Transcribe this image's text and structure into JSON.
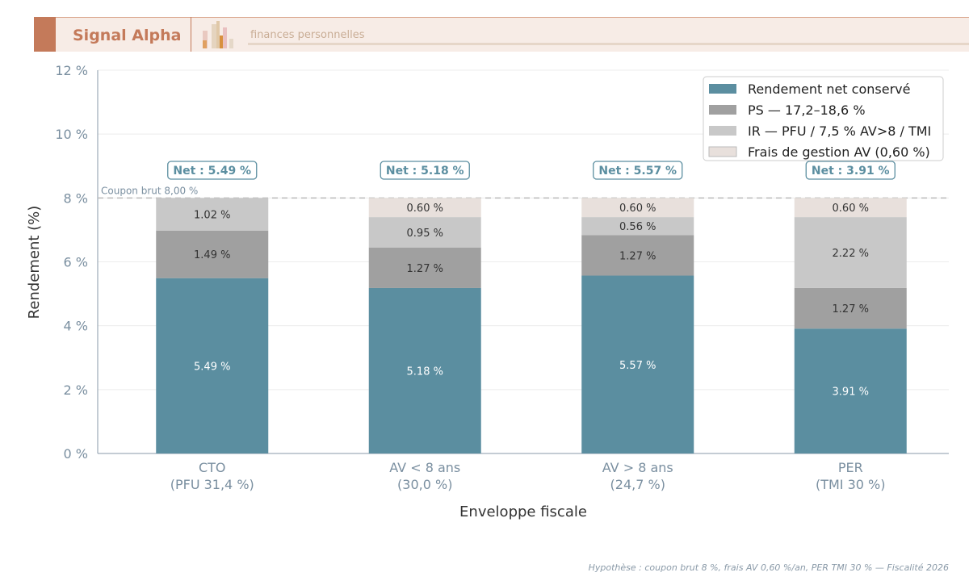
{
  "header": {
    "brand": "Signal Alpha",
    "tagline": "finances personnelles",
    "accent": "#c47a5a",
    "background": "#f7ece6"
  },
  "chart_data": {
    "type": "bar",
    "stacked": true,
    "categories": [
      "CTO\n(PFU 31,4 %)",
      "AV < 8 ans\n(30,0 %)",
      "AV > 8 ans\n(24,7 %)",
      "PER\n(TMI 30 %)"
    ],
    "series": [
      {
        "name": "Rendement net conservé",
        "color": "#5b8ea0",
        "values": [
          5.49,
          5.18,
          5.57,
          3.91
        ],
        "labels": [
          "5.49 %",
          "5.18 %",
          "5.57 %",
          "3.91 %"
        ]
      },
      {
        "name": "PS — 17,2–18,6 %",
        "color": "#a0a0a0",
        "values": [
          1.49,
          1.27,
          1.27,
          1.27
        ],
        "labels": [
          "1.49 %",
          "1.27 %",
          "1.27 %",
          "1.27 %"
        ]
      },
      {
        "name": "IR — PFU / 7,5 % AV>8 / TMI",
        "color": "#c8c8c8",
        "values": [
          1.02,
          0.95,
          0.56,
          2.22
        ],
        "labels": [
          "1.02 %",
          "0.95 %",
          "0.56 %",
          "2.22 %"
        ]
      },
      {
        "name": "Frais de gestion AV (0,60 %)",
        "color": "#e8e0dc",
        "values": [
          0,
          0.6,
          0.6,
          0.6
        ],
        "labels": [
          "",
          "0.60 %",
          "0.60 %",
          "0.60 %"
        ]
      }
    ],
    "net_labels": [
      "Net : 5.49 %",
      "Net : 5.18 %",
      "Net : 5.57 %",
      "Net : 3.91 %"
    ],
    "reference_line": {
      "value": 8,
      "label": "Coupon brut 8,00 %"
    },
    "xlabel": "Enveloppe fiscale",
    "ylabel": "Rendement (%)",
    "ylim": [
      0,
      12
    ],
    "yticks": [
      "0 %",
      "2 %",
      "4 %",
      "6 %",
      "8 %",
      "10 %",
      "12 %"
    ],
    "grid": true,
    "legend": "top-right"
  },
  "footer": "Hypothèse : coupon brut 8 %, frais AV 0,60 %/an, PER TMI 30 % — Fiscalité 2026"
}
